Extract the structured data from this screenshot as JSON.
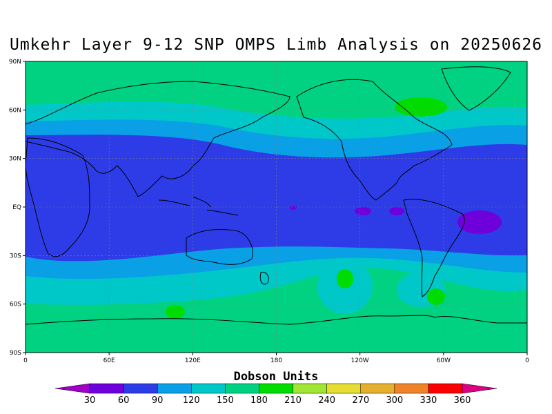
{
  "title": "Umkehr Layer 9-12 SNP OMPS Limb Analysis on 20250626",
  "colorbar": {
    "title": "Dobson Units",
    "levels": [
      "30",
      "60",
      "90",
      "120",
      "150",
      "180",
      "210",
      "240",
      "270",
      "300",
      "330",
      "360"
    ],
    "colors": [
      "#a000c8",
      "#6e00dc",
      "#2d3ce6",
      "#0aa0e6",
      "#00c8c8",
      "#00d282",
      "#00dc00",
      "#a0e632",
      "#e6dc32",
      "#e6af2d",
      "#f08228",
      "#fa0000",
      "#dc0082"
    ]
  },
  "axes": {
    "x_ticks": [
      "0",
      "60E",
      "120E",
      "180",
      "120W",
      "60W",
      "0"
    ],
    "y_ticks": [
      "90N",
      "60N",
      "30N",
      "EQ",
      "30S",
      "60S",
      "90S"
    ]
  },
  "colors": {
    "band_high_lat": "#00d282",
    "band_mid": "#00c8c8",
    "band_sub": "#0aa0e6",
    "band_tropics": "#2d3ce6",
    "maxima": "#00dc00",
    "minima": "#6e00dc",
    "coastline": "#000000"
  }
}
